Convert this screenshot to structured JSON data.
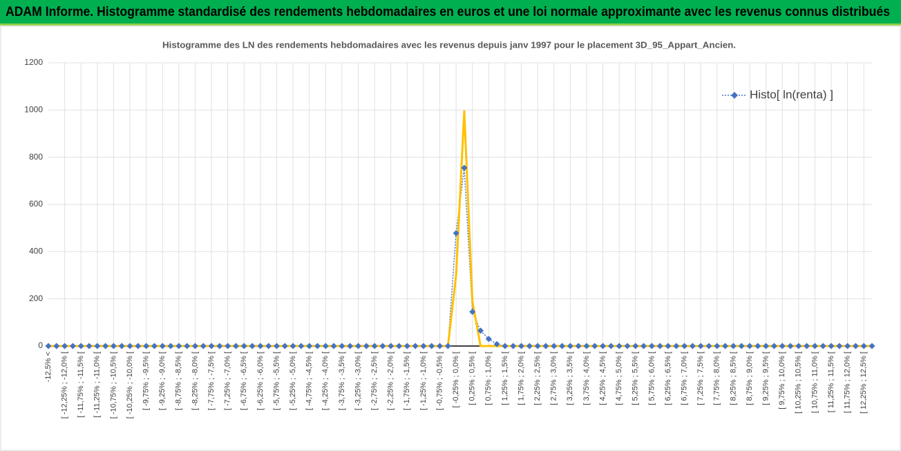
{
  "header": {
    "title": "ADAM Informe. Histogramme standardisé des rendements hebdomadaires en euros et une loi normale approximante avec les revenus connus distribués"
  },
  "chart_data": {
    "type": "line",
    "title": "Histogramme  des LN des rendements hebdomadaires avec les revenus depuis janv 1997 pour le placement 3D_95_Appart_Ancien.",
    "categories": [
      "-12,5% <",
      null,
      "[ -12,25% ; -12,0% [",
      null,
      "[ -11,75% ; -11,5% [",
      null,
      "[ -11,25% ; -11,0% [",
      null,
      "[ -10,75% ; -10,5% [",
      null,
      "[ -10,25% ; -10,0% [",
      null,
      "[ -9,75% ; -9,5% [",
      null,
      "[ -9,25% ; -9,0% [",
      null,
      "[ -8,75% ; -8,5% [",
      null,
      "[ -8,25% ; -8,0% [",
      null,
      "[ -7,75% ; -7,5% [",
      null,
      "[ -7,25% ; -7,0% [",
      null,
      "[ -6,75% ; -6,5% [",
      null,
      "[ -6,25% ; -6,0% [",
      null,
      "[ -5,75% ; -5,5% [",
      null,
      "[ -5,25% ; -5,0% [",
      null,
      "[ -4,75% ; -4,5% [",
      null,
      "[ -4,25% ; -4,0% [",
      null,
      "[ -3,75% ; -3,5% [",
      null,
      "[ -3,25% ; -3,0% [",
      null,
      "[ -2,75% ; -2,5% [",
      null,
      "[ -2,25% ; -2,0% [",
      null,
      "[ -1,75% ; -1,5% [",
      null,
      "[ -1,25% ; -1,0% [",
      null,
      "[ -0,75% ; -0,5% [",
      null,
      "[ -0,25% ; 0,0% [",
      null,
      "[ 0,25% ; 0,5% [",
      null,
      "[ 0,75% ; 1,0% [",
      null,
      "[ 1,25% ; 1,5% [",
      null,
      "[ 1,75% ; 2,0% [",
      null,
      "[ 2,25% ; 2,5% [",
      null,
      "[ 2,75% ; 3,0% [",
      null,
      "[ 3,25% ; 3,5% [",
      null,
      "[ 3,75% ; 4,0% [",
      null,
      "[ 4,25% ; 4,5% [",
      null,
      "[ 4,75% ; 5,0% [",
      null,
      "[ 5,25% ; 5,5% [",
      null,
      "[ 5,75% ; 6,0% [",
      null,
      "[ 6,25% ; 6,5% [",
      null,
      "[ 6,75% ; 7,0% [",
      null,
      "[ 7,25% ; 7,5% [",
      null,
      "[ 7,75% ; 8,0% [",
      null,
      "[ 8,25% ; 8,5% [",
      null,
      "[ 8,75% ; 9,0% [",
      null,
      "[ 9,25% ; 9,5% [",
      null,
      "[ 9,75% ; 10,0% [",
      null,
      "[ 10,25% ; 10,5% [",
      null,
      "[ 10,75% ; 11,0% [",
      null,
      "[ 11,25% ; 11,5% [",
      null,
      "[ 11,75% ; 12,0% [",
      null,
      "[ 12,25% ; 12,5% [",
      null
    ],
    "series": [
      {
        "name": "Histo[ ln(renta) ]",
        "color": "#4472c4",
        "marker": "diamond",
        "dash": "dotted",
        "values": [
          0,
          0,
          0,
          0,
          0,
          0,
          0,
          0,
          0,
          0,
          0,
          0,
          0,
          0,
          0,
          0,
          0,
          0,
          0,
          0,
          0,
          0,
          0,
          0,
          0,
          0,
          0,
          0,
          0,
          0,
          0,
          0,
          0,
          0,
          0,
          0,
          0,
          0,
          0,
          0,
          0,
          0,
          0,
          0,
          0,
          0,
          0,
          0,
          0,
          0,
          478,
          755,
          145,
          65,
          30,
          8,
          0,
          0,
          0,
          0,
          0,
          0,
          0,
          0,
          0,
          0,
          0,
          0,
          0,
          0,
          0,
          0,
          0,
          0,
          0,
          0,
          0,
          0,
          0,
          0,
          0,
          0,
          0,
          0,
          0,
          0,
          0,
          0,
          0,
          0,
          0,
          0,
          0,
          0,
          0,
          0,
          0,
          0,
          0,
          0,
          0,
          0
        ]
      },
      {
        "color": "#ffc000",
        "values": [
          0,
          0,
          0,
          0,
          0,
          0,
          0,
          0,
          0,
          0,
          0,
          0,
          0,
          0,
          0,
          0,
          0,
          0,
          0,
          0,
          0,
          0,
          0,
          0,
          0,
          0,
          0,
          0,
          0,
          0,
          0,
          0,
          0,
          0,
          0,
          0,
          0,
          0,
          0,
          0,
          0,
          0,
          0,
          0,
          0,
          0,
          0,
          0,
          0,
          0,
          300,
          995,
          190,
          0,
          0,
          0,
          0,
          0,
          0,
          0,
          0,
          0,
          0,
          0,
          0,
          0,
          0,
          0,
          0,
          0,
          0,
          0,
          0,
          0,
          0,
          0,
          0,
          0,
          0,
          0,
          0,
          0,
          0,
          0,
          0,
          0,
          0,
          0,
          0,
          0,
          0,
          0,
          0,
          0,
          0,
          0,
          0,
          0,
          0,
          0,
          0,
          0
        ]
      }
    ],
    "ylim": [
      0,
      1200
    ],
    "yticks": [
      0,
      200,
      400,
      600,
      800,
      1000,
      1200
    ],
    "grid": true,
    "legend": "upper right"
  }
}
